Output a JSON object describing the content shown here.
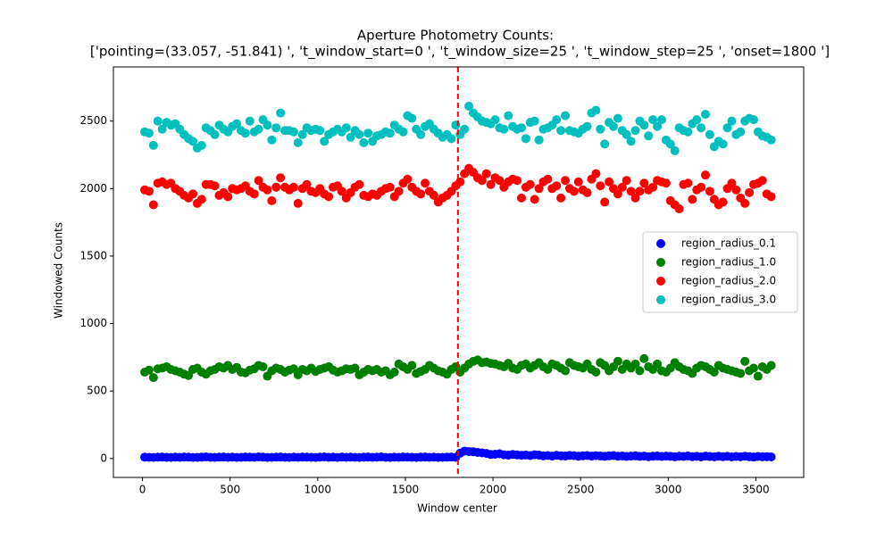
{
  "chart_data": {
    "type": "scatter",
    "title": "Aperture Photometry Counts:",
    "subtitle": "['pointing=(33.057, -51.841) ', 't_window_start=0 ', 't_window_size=25 ', 't_window_step=25 ', 'onset=1800 ']",
    "x_label": "Window center",
    "y_label": "Windowed Counts",
    "xlim": [
      -166,
      3773
    ],
    "ylim": [
      -140,
      2901
    ],
    "xticks": [
      0,
      500,
      1000,
      1500,
      2000,
      2500,
      3000,
      3500
    ],
    "yticks": [
      0,
      500,
      1000,
      1500,
      2000,
      2500
    ],
    "grid": false,
    "legend": "center right",
    "vlines": [
      {
        "x": 1800,
        "color": "#ff0000"
      }
    ],
    "x": [
      12.5,
      37.5,
      62.5,
      87.5,
      112.5,
      137.5,
      162.5,
      187.5,
      212.5,
      237.5,
      262.5,
      287.5,
      312.5,
      337.5,
      362.5,
      387.5,
      412.5,
      437.5,
      462.5,
      487.5,
      512.5,
      537.5,
      562.5,
      587.5,
      612.5,
      637.5,
      662.5,
      687.5,
      712.5,
      737.5,
      762.5,
      787.5,
      812.5,
      837.5,
      862.5,
      887.5,
      912.5,
      937.5,
      962.5,
      987.5,
      1012.5,
      1037.5,
      1062.5,
      1087.5,
      1112.5,
      1137.5,
      1162.5,
      1187.5,
      1212.5,
      1237.5,
      1262.5,
      1287.5,
      1312.5,
      1337.5,
      1362.5,
      1387.5,
      1412.5,
      1437.5,
      1462.5,
      1487.5,
      1512.5,
      1537.5,
      1562.5,
      1587.5,
      1612.5,
      1637.5,
      1662.5,
      1687.5,
      1712.5,
      1737.5,
      1762.5,
      1787.5,
      1812.5,
      1837.5,
      1862.5,
      1887.5,
      1912.5,
      1937.5,
      1962.5,
      1987.5,
      2012.5,
      2037.5,
      2062.5,
      2087.5,
      2112.5,
      2137.5,
      2162.5,
      2187.5,
      2212.5,
      2237.5,
      2262.5,
      2287.5,
      2312.5,
      2337.5,
      2362.5,
      2387.5,
      2412.5,
      2437.5,
      2462.5,
      2487.5,
      2512.5,
      2537.5,
      2562.5,
      2587.5,
      2612.5,
      2637.5,
      2662.5,
      2687.5,
      2712.5,
      2737.5,
      2762.5,
      2787.5,
      2812.5,
      2837.5,
      2862.5,
      2887.5,
      2912.5,
      2937.5,
      2962.5,
      2987.5,
      3012.5,
      3037.5,
      3062.5,
      3087.5,
      3112.5,
      3137.5,
      3162.5,
      3187.5,
      3212.5,
      3237.5,
      3262.5,
      3287.5,
      3312.5,
      3337.5,
      3362.5,
      3387.5,
      3412.5,
      3437.5,
      3462.5,
      3487.5,
      3512.5,
      3537.5,
      3562.5,
      3587.5
    ],
    "series": [
      {
        "name": "region_radius_0.1",
        "color": "#0000ff",
        "yerr": 3,
        "values": [
          10,
          9,
          8,
          10,
          11,
          9,
          8,
          10,
          9,
          11,
          10,
          8,
          9,
          10,
          12,
          9,
          8,
          10,
          11,
          9,
          10,
          8,
          9,
          11,
          10,
          9,
          12,
          10,
          8,
          9,
          10,
          11,
          9,
          8,
          10,
          9,
          11,
          10,
          9,
          8,
          10,
          12,
          9,
          10,
          8,
          11,
          9,
          10,
          9,
          8,
          10,
          11,
          9,
          10,
          12,
          9,
          8,
          10,
          9,
          11,
          10,
          9,
          8,
          10,
          11,
          9,
          10,
          8,
          9,
          10,
          11,
          9,
          40,
          55,
          52,
          50,
          45,
          42,
          38,
          30,
          32,
          35,
          28,
          25,
          30,
          27,
          24,
          26,
          22,
          28,
          25,
          20,
          22,
          18,
          24,
          20,
          19,
          23,
          21,
          17,
          20,
          22,
          18,
          21,
          19,
          16,
          20,
          22,
          17,
          19,
          15,
          18,
          20,
          16,
          18,
          14,
          17,
          19,
          15,
          18,
          16,
          13,
          17,
          15,
          19,
          14,
          16,
          12,
          18,
          15,
          13,
          17,
          14,
          16,
          12,
          15,
          13,
          17,
          14,
          11,
          15,
          13,
          14,
          12
        ]
      },
      {
        "name": "region_radius_1.0",
        "color": "#008000",
        "yerr": 12,
        "values": [
          640,
          655,
          600,
          665,
          670,
          680,
          660,
          650,
          640,
          625,
          615,
          660,
          670,
          640,
          625,
          650,
          660,
          680,
          670,
          690,
          660,
          675,
          640,
          635,
          655,
          665,
          690,
          680,
          610,
          650,
          670,
          660,
          640,
          655,
          665,
          620,
          660,
          650,
          670,
          645,
          660,
          670,
          680,
          655,
          640,
          650,
          665,
          660,
          670,
          620,
          640,
          660,
          650,
          660,
          640,
          650,
          620,
          640,
          700,
          680,
          660,
          690,
          630,
          645,
          660,
          690,
          670,
          650,
          640,
          625,
          660,
          680,
          640,
          670,
          700,
          720,
          730,
          710,
          715,
          705,
          700,
          690,
          680,
          705,
          670,
          660,
          690,
          700,
          670,
          690,
          710,
          680,
          660,
          700,
          690,
          670,
          650,
          710,
          690,
          680,
          670,
          700,
          660,
          640,
          710,
          690,
          650,
          680,
          720,
          660,
          700,
          670,
          700,
          650,
          740,
          680,
          660,
          700,
          650,
          640,
          670,
          710,
          680,
          660,
          650,
          630,
          670,
          690,
          680,
          660,
          640,
          690,
          670,
          660,
          650,
          640,
          630,
          720,
          650,
          670,
          610,
          680,
          660,
          690
        ]
      },
      {
        "name": "region_radius_2.0",
        "color": "#ff0000",
        "yerr": 20,
        "values": [
          1990,
          1980,
          1880,
          2040,
          2050,
          2030,
          2040,
          2000,
          1980,
          1950,
          1930,
          1960,
          1890,
          1920,
          2030,
          2030,
          2020,
          1950,
          1970,
          1940,
          2000,
          1990,
          2000,
          2020,
          1980,
          1960,
          2060,
          2010,
          1990,
          1910,
          2010,
          2080,
          2010,
          1990,
          2010,
          1890,
          2000,
          2030,
          1980,
          1970,
          2000,
          1960,
          1940,
          2010,
          2020,
          1980,
          1930,
          1970,
          2010,
          2030,
          1950,
          1940,
          1960,
          1950,
          1980,
          2000,
          2010,
          1940,
          1980,
          2040,
          2070,
          2010,
          1980,
          1960,
          2040,
          1980,
          1950,
          1900,
          1930,
          1950,
          1980,
          2020,
          2050,
          2110,
          2150,
          2120,
          2080,
          2060,
          2110,
          2030,
          2080,
          2060,
          2010,
          2050,
          2070,
          2060,
          1930,
          2010,
          2030,
          1920,
          2000,
          2050,
          2070,
          2000,
          2020,
          1930,
          2060,
          2000,
          1980,
          2050,
          1990,
          1970,
          2070,
          2110,
          2020,
          1900,
          2050,
          2000,
          1960,
          2010,
          2060,
          1980,
          1930,
          1980,
          2040,
          1990,
          2010,
          2060,
          2050,
          2040,
          1910,
          1880,
          1850,
          2030,
          2040,
          1920,
          1990,
          2010,
          2100,
          1980,
          1920,
          1880,
          1900,
          2000,
          2040,
          1990,
          1930,
          1890,
          1970,
          2030,
          2040,
          2060,
          1960,
          1940
        ]
      },
      {
        "name": "region_radius_3.0",
        "color": "#00bfbf",
        "yerr": 22,
        "values": [
          2420,
          2410,
          2320,
          2500,
          2440,
          2490,
          2470,
          2480,
          2440,
          2400,
          2370,
          2350,
          2300,
          2320,
          2450,
          2430,
          2400,
          2470,
          2440,
          2420,
          2460,
          2480,
          2430,
          2410,
          2500,
          2420,
          2440,
          2510,
          2470,
          2360,
          2450,
          2560,
          2430,
          2430,
          2420,
          2340,
          2400,
          2450,
          2430,
          2440,
          2430,
          2350,
          2400,
          2420,
          2440,
          2420,
          2450,
          2380,
          2430,
          2400,
          2340,
          2410,
          2350,
          2390,
          2400,
          2420,
          2410,
          2470,
          2440,
          2420,
          2540,
          2520,
          2440,
          2400,
          2460,
          2480,
          2440,
          2410,
          2380,
          2400,
          2370,
          2470,
          2400,
          2440,
          2610,
          2560,
          2530,
          2500,
          2490,
          2480,
          2510,
          2450,
          2440,
          2540,
          2460,
          2440,
          2450,
          2370,
          2490,
          2500,
          2360,
          2440,
          2450,
          2470,
          2510,
          2430,
          2540,
          2430,
          2420,
          2410,
          2440,
          2460,
          2560,
          2580,
          2440,
          2330,
          2490,
          2460,
          2520,
          2430,
          2400,
          2350,
          2430,
          2500,
          2470,
          2390,
          2510,
          2460,
          2510,
          2360,
          2330,
          2280,
          2450,
          2430,
          2420,
          2480,
          2510,
          2450,
          2550,
          2400,
          2310,
          2350,
          2330,
          2450,
          2500,
          2400,
          2420,
          2500,
          2520,
          2510,
          2420,
          2390,
          2380,
          2360
        ]
      }
    ]
  }
}
